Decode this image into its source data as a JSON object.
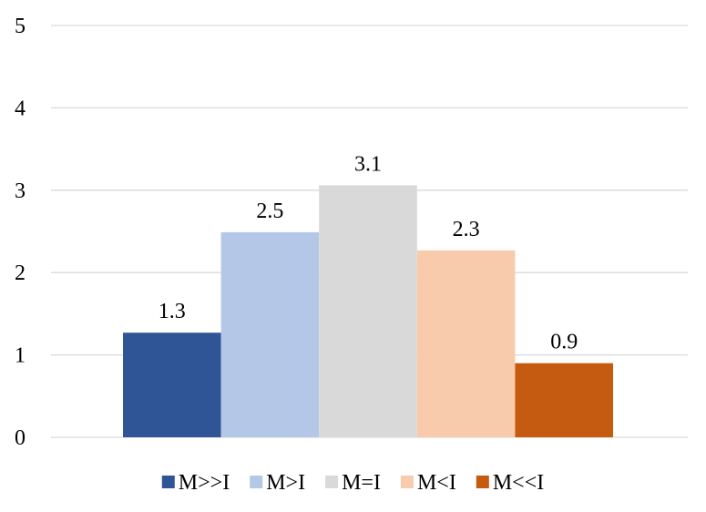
{
  "chart_data": {
    "type": "bar",
    "title": "",
    "xlabel": "",
    "ylabel": "",
    "ylim": [
      0,
      5
    ],
    "yticks": [
      "0",
      "1",
      "2",
      "3",
      "4",
      "5"
    ],
    "grid": true,
    "legend_position": "bottom",
    "categories": [
      "M>>I",
      "M>I",
      "M=I",
      "M<I",
      "M<<I"
    ],
    "values": [
      1.3,
      2.5,
      3.1,
      2.3,
      0.9
    ],
    "bar_heights": [
      1.27,
      2.49,
      3.06,
      2.27,
      0.9
    ],
    "colors": [
      "#2f5597",
      "#b4c7e7",
      "#d9d9d9",
      "#f8cbad",
      "#c55a11"
    ],
    "gridline_color": "#d9d9d9"
  }
}
